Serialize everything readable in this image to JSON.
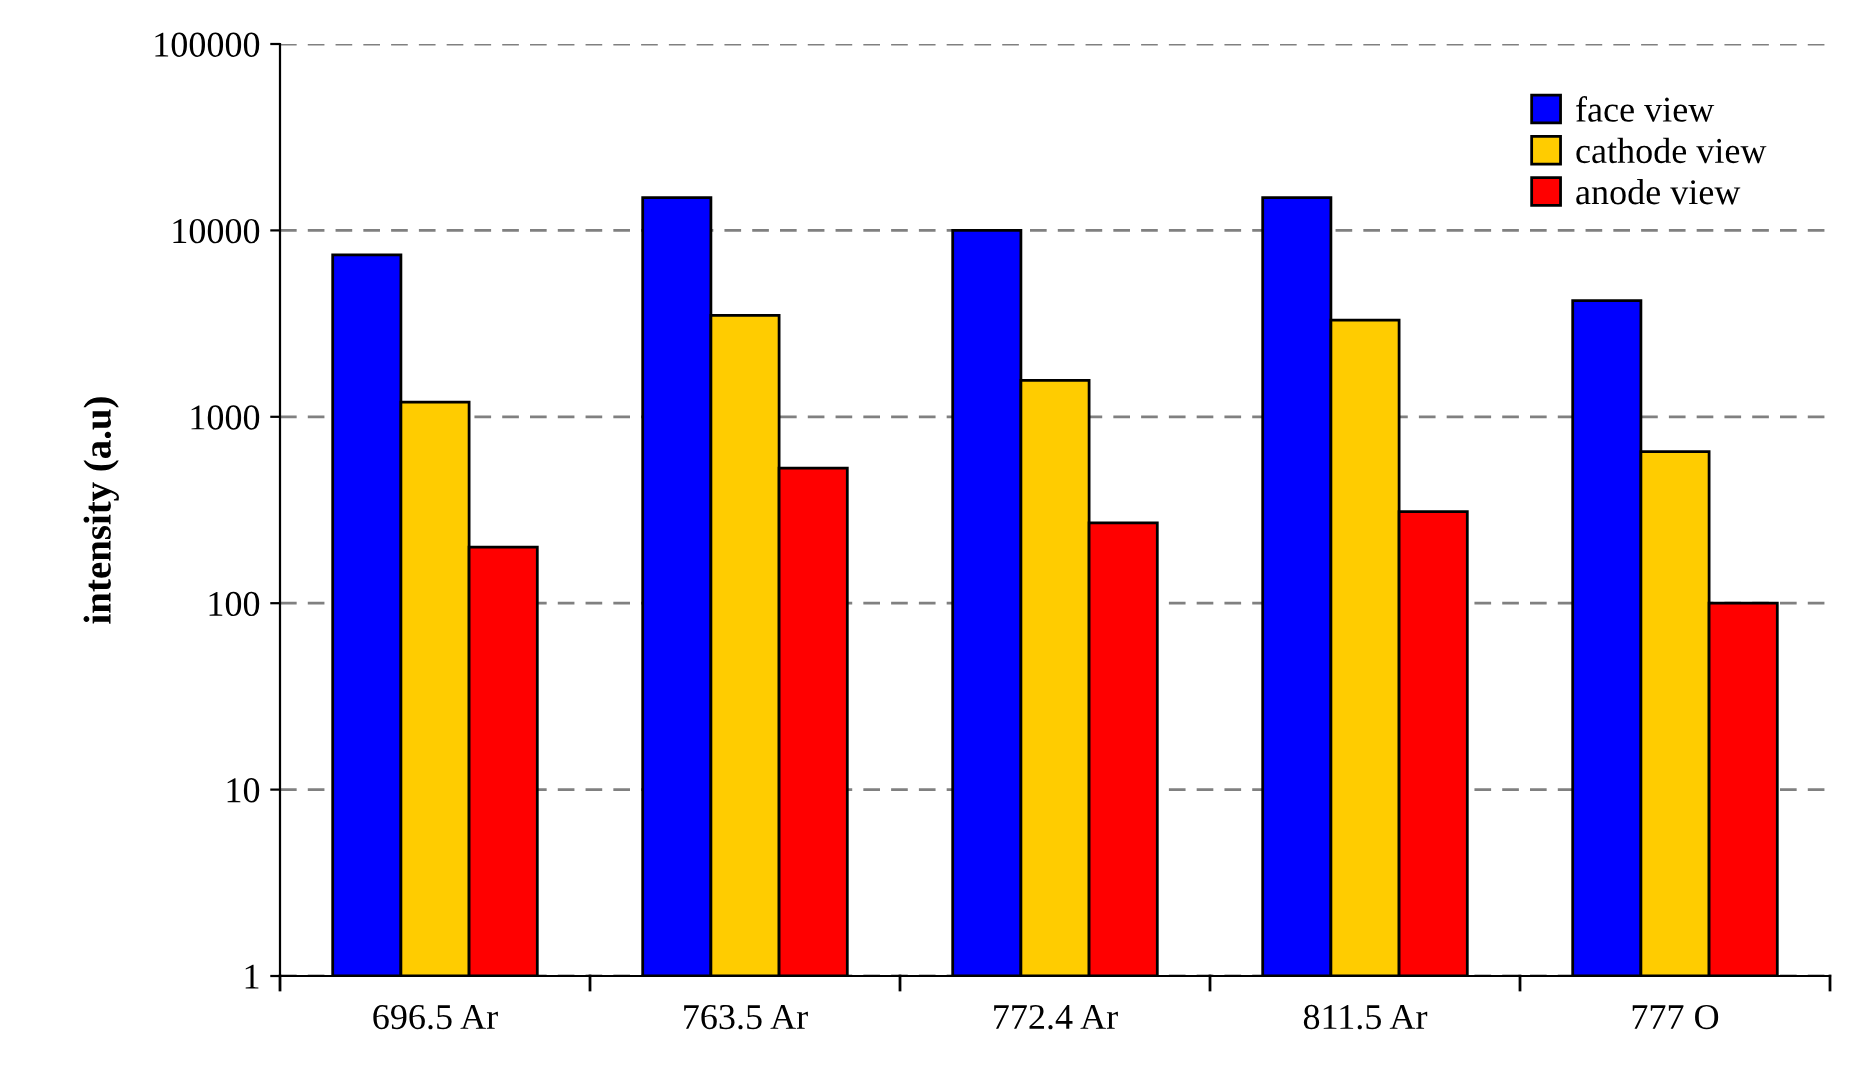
{
  "chart_data": {
    "type": "bar",
    "ylabel": "intensity (a.u)",
    "categories": [
      "696.5 Ar",
      "763.5 Ar",
      "772.4 Ar",
      "811.5 Ar",
      "777 O"
    ],
    "series": [
      {
        "name": "face view",
        "color": "#0000ff",
        "values": [
          7400,
          15000,
          10000,
          15000,
          4200
        ]
      },
      {
        "name": "cathode view",
        "color": "#ffcc00",
        "values": [
          1200,
          3500,
          1570,
          3300,
          650
        ]
      },
      {
        "name": "anode view",
        "color": "#ff0000",
        "values": [
          200,
          530,
          270,
          310,
          100
        ]
      }
    ],
    "log": true,
    "ylim": [
      1,
      100000
    ],
    "yticks": [
      1,
      10,
      100,
      1000,
      10000,
      100000
    ],
    "grid": "y",
    "legend": "top right"
  }
}
